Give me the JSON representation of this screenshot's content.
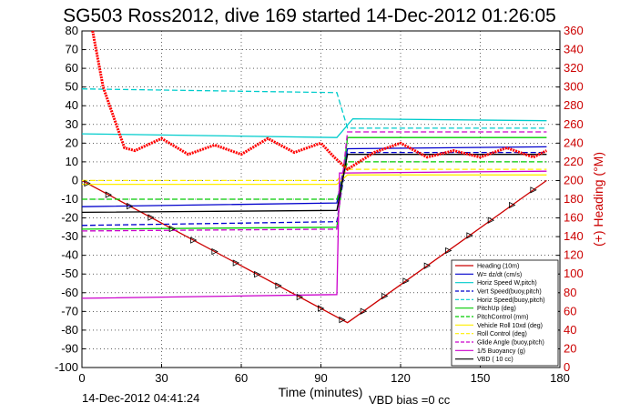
{
  "chart_data": {
    "type": "line",
    "title": "SG503 Ross2012, dive 169 started 14-Dec-2012 01:26:05",
    "xlabel": "Time (minutes)",
    "ylabel_right": "(+) Heading (°M)",
    "xlim": [
      0,
      180
    ],
    "ylim": [
      -100,
      80
    ],
    "ylim_right": [
      0,
      360
    ],
    "x_ticks": [
      "0",
      "30",
      "60",
      "90",
      "120",
      "150",
      "180"
    ],
    "y_ticks": [
      "80",
      "70",
      "60",
      "50",
      "40",
      "30",
      "20",
      "10",
      "0",
      "-10",
      "-20",
      "-30",
      "-40",
      "-50",
      "-60",
      "-70",
      "-80",
      "-90",
      "-100"
    ],
    "y_ticks_right": [
      "360",
      "340",
      "320",
      "300",
      "280",
      "260",
      "240",
      "220",
      "200",
      "180",
      "160",
      "140",
      "120",
      "100",
      "80",
      "60",
      "40",
      "20",
      "0"
    ],
    "grid": true,
    "legend_position": "bottom-right",
    "footer_left": "14-Dec-2012 04:41:24",
    "footer_right": "VBD bias =0 cc",
    "series": [
      {
        "name": "Heading (10m)",
        "color": "#cc0000",
        "style": "solid",
        "x": [
          0,
          100,
          175
        ],
        "y": [
          0,
          -76,
          0
        ]
      },
      {
        "name": "W= dz/dt (cm/s)",
        "color": "#0000cc",
        "style": "solid",
        "x": [
          0,
          96,
          100,
          175
        ],
        "y": [
          -14,
          -12,
          17,
          18
        ]
      },
      {
        "name": "Horiz Speed W,pitch)",
        "color": "#00cccc",
        "style": "solid",
        "x": [
          0,
          96,
          102,
          175
        ],
        "y": [
          25,
          23,
          33,
          32
        ]
      },
      {
        "name": "Vert Speed(buoy,pitch)",
        "color": "#0000cc",
        "style": "dashed",
        "x": [
          0,
          96,
          100,
          175
        ],
        "y": [
          -24,
          -22,
          15,
          15
        ]
      },
      {
        "name": "Horiz Speed(buoy,pitch)",
        "color": "#00cccc",
        "style": "dashed",
        "x": [
          0,
          96,
          100,
          175
        ],
        "y": [
          49,
          47,
          28,
          28
        ]
      },
      {
        "name": "PitchUp (deg)",
        "color": "#00cc00",
        "style": "solid",
        "x": [
          0,
          96,
          100,
          175
        ],
        "y": [
          -26,
          -25,
          23,
          23
        ]
      },
      {
        "name": "PitchControl (mm)",
        "color": "#00cc00",
        "style": "dashed",
        "x": [
          0,
          96,
          100,
          175
        ],
        "y": [
          -10,
          -10,
          10,
          10
        ]
      },
      {
        "name": "Vehicle Roll 10xd (deg)",
        "color": "#ffee00",
        "style": "solid",
        "x": [
          0,
          96,
          100,
          175
        ],
        "y": [
          -2,
          -2,
          3,
          3
        ]
      },
      {
        "name": "Roll Control (deg)",
        "color": "#ffee00",
        "style": "dashed",
        "x": [
          0,
          96,
          100,
          175
        ],
        "y": [
          0,
          0,
          6,
          6
        ]
      },
      {
        "name": "Glide Angle (buoy,pitch)",
        "color": "#cc00cc",
        "style": "dashed",
        "x": [
          0,
          96,
          100,
          175
        ],
        "y": [
          -27,
          -26,
          26,
          26
        ]
      },
      {
        "name": "1/5 Buoyancy (g)",
        "color": "#cc00cc",
        "style": "solid",
        "x": [
          0,
          96,
          97,
          175
        ],
        "y": [
          -63,
          -61,
          4,
          5
        ]
      },
      {
        "name": "VBD ( 10 cc)",
        "color": "#000000",
        "style": "solid",
        "x": [
          0,
          96,
          100,
          175
        ],
        "y": [
          -17,
          -16,
          14,
          14
        ]
      }
    ],
    "heading_series": {
      "color": "#ff0000",
      "x": [
        4,
        8,
        16,
        20,
        30,
        40,
        50,
        60,
        70,
        80,
        90,
        95,
        100,
        110,
        120,
        130,
        140,
        150,
        160,
        170,
        175
      ],
      "y": [
        360,
        300,
        235,
        232,
        245,
        228,
        238,
        228,
        245,
        230,
        240,
        225,
        212,
        230,
        240,
        225,
        232,
        225,
        235,
        225,
        232
      ]
    }
  }
}
